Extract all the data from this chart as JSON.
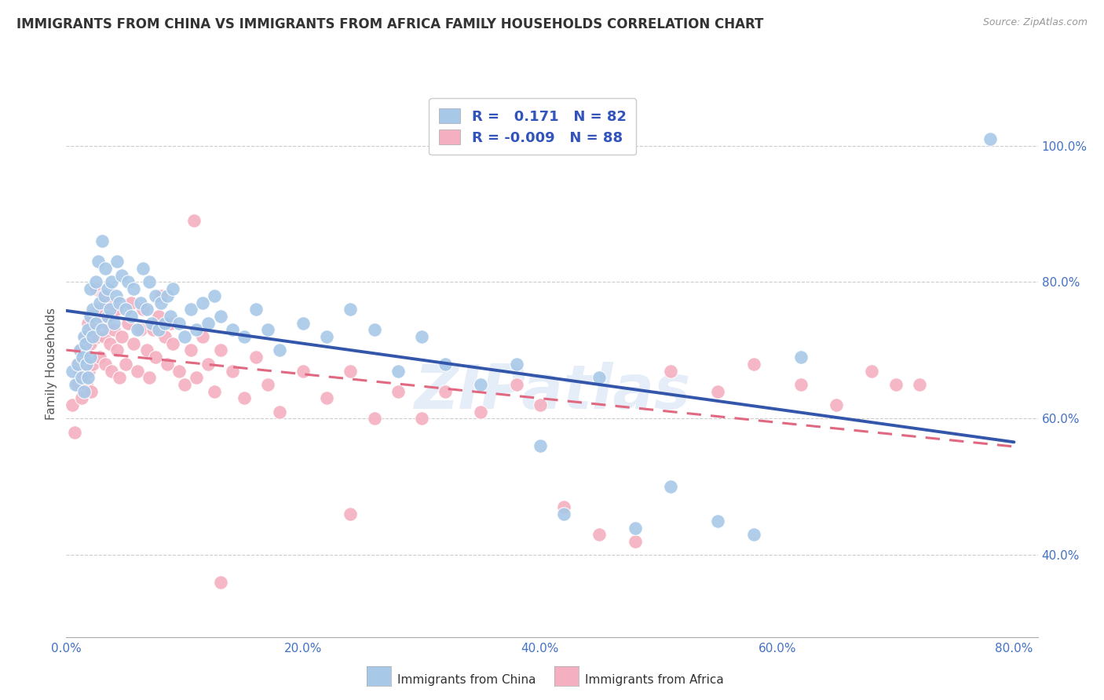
{
  "title": "IMMIGRANTS FROM CHINA VS IMMIGRANTS FROM AFRICA FAMILY HOUSEHOLDS CORRELATION CHART",
  "source": "Source: ZipAtlas.com",
  "ylabel": "Family Households",
  "xlim": [
    0.0,
    0.82
  ],
  "ylim": [
    0.28,
    1.08
  ],
  "china_color": "#a8c8e8",
  "africa_color": "#f4b0c0",
  "china_line_color": "#3355aa",
  "africa_line_color": "#e06880",
  "china_R": 0.171,
  "china_N": 82,
  "africa_R": -0.009,
  "africa_N": 88,
  "legend_text_color": "#3355bb",
  "watermark": "ZIPatlas",
  "china_x": [
    0.005,
    0.008,
    0.01,
    0.012,
    0.013,
    0.014,
    0.015,
    0.015,
    0.016,
    0.017,
    0.018,
    0.018,
    0.02,
    0.02,
    0.02,
    0.022,
    0.022,
    0.025,
    0.025,
    0.027,
    0.028,
    0.03,
    0.03,
    0.032,
    0.033,
    0.035,
    0.035,
    0.037,
    0.038,
    0.04,
    0.042,
    0.043,
    0.045,
    0.047,
    0.05,
    0.052,
    0.055,
    0.057,
    0.06,
    0.063,
    0.065,
    0.068,
    0.07,
    0.072,
    0.075,
    0.078,
    0.08,
    0.083,
    0.085,
    0.088,
    0.09,
    0.095,
    0.1,
    0.105,
    0.11,
    0.115,
    0.12,
    0.125,
    0.13,
    0.14,
    0.15,
    0.16,
    0.17,
    0.18,
    0.2,
    0.22,
    0.24,
    0.26,
    0.28,
    0.3,
    0.32,
    0.35,
    0.38,
    0.4,
    0.42,
    0.45,
    0.48,
    0.51,
    0.55,
    0.58,
    0.62,
    0.78
  ],
  "china_y": [
    0.67,
    0.65,
    0.68,
    0.7,
    0.66,
    0.69,
    0.72,
    0.64,
    0.71,
    0.68,
    0.73,
    0.66,
    0.75,
    0.79,
    0.69,
    0.72,
    0.76,
    0.8,
    0.74,
    0.83,
    0.77,
    0.73,
    0.86,
    0.78,
    0.82,
    0.75,
    0.79,
    0.76,
    0.8,
    0.74,
    0.78,
    0.83,
    0.77,
    0.81,
    0.76,
    0.8,
    0.75,
    0.79,
    0.73,
    0.77,
    0.82,
    0.76,
    0.8,
    0.74,
    0.78,
    0.73,
    0.77,
    0.74,
    0.78,
    0.75,
    0.79,
    0.74,
    0.72,
    0.76,
    0.73,
    0.77,
    0.74,
    0.78,
    0.75,
    0.73,
    0.72,
    0.76,
    0.73,
    0.7,
    0.74,
    0.72,
    0.76,
    0.73,
    0.67,
    0.72,
    0.68,
    0.65,
    0.68,
    0.56,
    0.46,
    0.66,
    0.44,
    0.5,
    0.45,
    0.43,
    0.69,
    1.01
  ],
  "africa_x": [
    0.005,
    0.007,
    0.009,
    0.01,
    0.011,
    0.012,
    0.013,
    0.014,
    0.015,
    0.016,
    0.017,
    0.018,
    0.019,
    0.02,
    0.021,
    0.022,
    0.023,
    0.025,
    0.026,
    0.027,
    0.028,
    0.03,
    0.031,
    0.032,
    0.033,
    0.035,
    0.036,
    0.037,
    0.038,
    0.04,
    0.042,
    0.043,
    0.045,
    0.047,
    0.05,
    0.052,
    0.055,
    0.057,
    0.06,
    0.063,
    0.065,
    0.068,
    0.07,
    0.073,
    0.075,
    0.078,
    0.08,
    0.083,
    0.085,
    0.088,
    0.09,
    0.095,
    0.1,
    0.105,
    0.11,
    0.115,
    0.12,
    0.125,
    0.13,
    0.14,
    0.15,
    0.16,
    0.17,
    0.18,
    0.2,
    0.22,
    0.24,
    0.26,
    0.28,
    0.3,
    0.32,
    0.35,
    0.38,
    0.4,
    0.42,
    0.45,
    0.48,
    0.51,
    0.55,
    0.58,
    0.62,
    0.65,
    0.68,
    0.7,
    0.72,
    0.108,
    0.24,
    0.13
  ],
  "africa_y": [
    0.62,
    0.58,
    0.68,
    0.65,
    0.7,
    0.67,
    0.63,
    0.66,
    0.69,
    0.72,
    0.65,
    0.74,
    0.67,
    0.71,
    0.64,
    0.68,
    0.73,
    0.79,
    0.72,
    0.76,
    0.69,
    0.75,
    0.78,
    0.72,
    0.68,
    0.74,
    0.77,
    0.71,
    0.67,
    0.73,
    0.76,
    0.7,
    0.66,
    0.72,
    0.68,
    0.74,
    0.77,
    0.71,
    0.67,
    0.73,
    0.76,
    0.7,
    0.66,
    0.73,
    0.69,
    0.75,
    0.78,
    0.72,
    0.68,
    0.74,
    0.71,
    0.67,
    0.65,
    0.7,
    0.66,
    0.72,
    0.68,
    0.64,
    0.7,
    0.67,
    0.63,
    0.69,
    0.65,
    0.61,
    0.67,
    0.63,
    0.67,
    0.6,
    0.64,
    0.6,
    0.64,
    0.61,
    0.65,
    0.62,
    0.47,
    0.43,
    0.42,
    0.67,
    0.64,
    0.68,
    0.65,
    0.62,
    0.67,
    0.65,
    0.65,
    0.89,
    0.46,
    0.36
  ],
  "x_tick_vals": [
    0.0,
    0.2,
    0.4,
    0.6,
    0.8
  ],
  "y_tick_vals": [
    0.4,
    0.6,
    0.8,
    1.0
  ],
  "bottom_legend_china": "Immigrants from China",
  "bottom_legend_africa": "Immigrants from Africa"
}
